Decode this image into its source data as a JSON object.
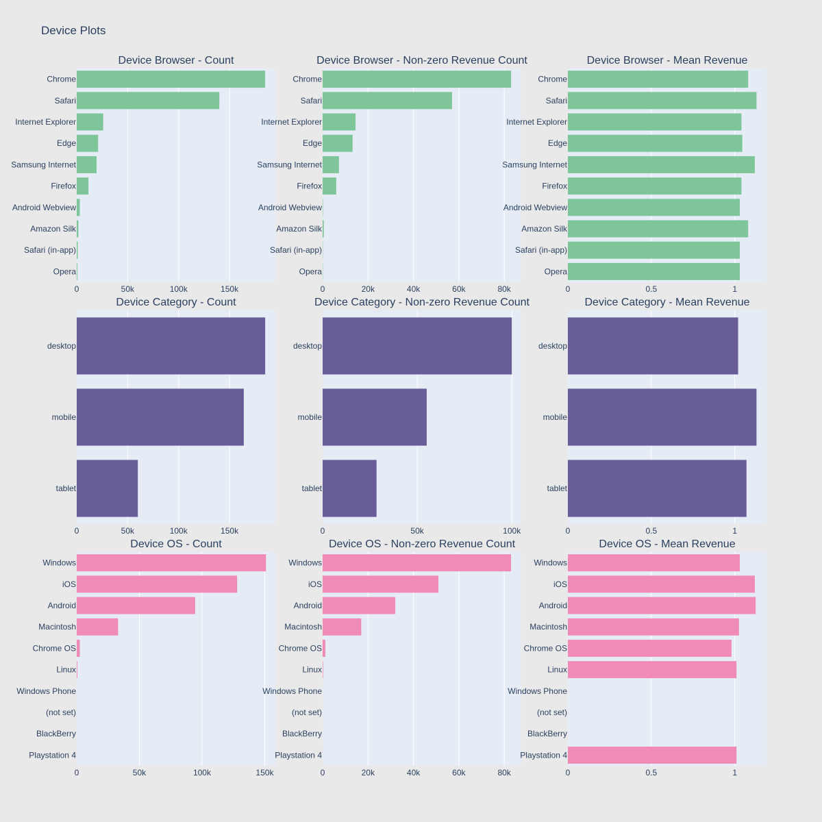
{
  "title": "Device Plots",
  "colors": {
    "browser": "#7ec699",
    "category": "#685d99",
    "os": "#ef8bb5",
    "plot_bg": "#e5ecf6",
    "paper_bg": "#e9e9e9",
    "grid": "#ffffff",
    "text": "#2a3f5f"
  },
  "chart_data": [
    {
      "type": "bar",
      "orientation": "horizontal",
      "title": "Device Browser - Count",
      "categories": [
        "Chrome",
        "Safari",
        "Internet Explorer",
        "Edge",
        "Samsung Internet",
        "Firefox",
        "Android Webview",
        "Amazon Silk",
        "Safari (in-app)",
        "Opera"
      ],
      "values": [
        185000,
        140000,
        26000,
        21000,
        19500,
        11500,
        3000,
        1600,
        1000,
        600
      ],
      "xlim": [
        0,
        195000
      ],
      "xticks": [
        0,
        50000,
        100000,
        150000
      ],
      "xtick_labels": [
        "0",
        "50k",
        "100k",
        "150k"
      ],
      "grid": true
    },
    {
      "type": "bar",
      "orientation": "horizontal",
      "title": "Device Browser - Non-zero Revenue Count",
      "categories": [
        "Chrome",
        "Safari",
        "Internet Explorer",
        "Edge",
        "Samsung Internet",
        "Firefox",
        "Android Webview",
        "Amazon Silk",
        "Safari (in-app)",
        "Opera"
      ],
      "values": [
        83000,
        57000,
        14500,
        13200,
        7200,
        6000,
        150,
        500,
        100,
        100
      ],
      "xlim": [
        0,
        87500
      ],
      "xticks": [
        0,
        20000,
        40000,
        60000,
        80000
      ],
      "xtick_labels": [
        "0",
        "20k",
        "40k",
        "60k",
        "80k"
      ],
      "grid": true
    },
    {
      "type": "bar",
      "orientation": "horizontal",
      "title": "Device Browser - Mean Revenue",
      "categories": [
        "Chrome",
        "Safari",
        "Internet Explorer",
        "Edge",
        "Samsung Internet",
        "Firefox",
        "Android Webview",
        "Amazon Silk",
        "Safari (in-app)",
        "Opera"
      ],
      "values": [
        1.08,
        1.13,
        1.04,
        1.045,
        1.12,
        1.04,
        1.03,
        1.08,
        1.03,
        1.03
      ],
      "xlim": [
        0,
        1.19
      ],
      "xticks": [
        0,
        0.5,
        1
      ],
      "xtick_labels": [
        "0",
        "0.5",
        "1"
      ],
      "grid": true
    },
    {
      "type": "bar",
      "orientation": "horizontal",
      "title": "Device Category - Count",
      "categories": [
        "desktop",
        "mobile",
        "tablet"
      ],
      "values": [
        185000,
        164000,
        60000
      ],
      "xlim": [
        0,
        195000
      ],
      "xticks": [
        0,
        50000,
        100000,
        150000
      ],
      "xtick_labels": [
        "0",
        "50k",
        "100k",
        "150k"
      ],
      "grid": true
    },
    {
      "type": "bar",
      "orientation": "horizontal",
      "title": "Device Category - Non-zero Revenue Count",
      "categories": [
        "desktop",
        "mobile",
        "tablet"
      ],
      "values": [
        100000,
        55000,
        28500
      ],
      "xlim": [
        0,
        105000
      ],
      "xticks": [
        0,
        50000,
        100000
      ],
      "xtick_labels": [
        "0",
        "50k",
        "100k"
      ],
      "grid": true
    },
    {
      "type": "bar",
      "orientation": "horizontal",
      "title": "Device Category - Mean Revenue",
      "categories": [
        "desktop",
        "mobile",
        "tablet"
      ],
      "values": [
        1.02,
        1.13,
        1.07
      ],
      "xlim": [
        0,
        1.19
      ],
      "xticks": [
        0,
        0.5,
        1
      ],
      "xtick_labels": [
        "0",
        "0.5",
        "1"
      ],
      "grid": true
    },
    {
      "type": "bar",
      "orientation": "horizontal",
      "title": "Device OS - Count",
      "categories": [
        "Windows",
        "iOS",
        "Android",
        "Macintosh",
        "Chrome OS",
        "Linux",
        "Windows Phone",
        "(not set)",
        "BlackBerry",
        "Playstation 4"
      ],
      "values": [
        151000,
        128000,
        94500,
        33000,
        2500,
        500,
        20,
        10,
        10,
        5
      ],
      "xlim": [
        0,
        158500
      ],
      "xticks": [
        0,
        50000,
        100000,
        150000
      ],
      "xtick_labels": [
        "0",
        "50k",
        "100k",
        "150k"
      ],
      "grid": true
    },
    {
      "type": "bar",
      "orientation": "horizontal",
      "title": "Device OS - Non-zero Revenue Count",
      "categories": [
        "Windows",
        "iOS",
        "Android",
        "Macintosh",
        "Chrome OS",
        "Linux",
        "Windows Phone",
        "(not set)",
        "BlackBerry",
        "Playstation 4"
      ],
      "values": [
        83000,
        51000,
        32000,
        17000,
        1200,
        200,
        0,
        0,
        0,
        5
      ],
      "xlim": [
        0,
        87500
      ],
      "xticks": [
        0,
        20000,
        40000,
        60000,
        80000
      ],
      "xtick_labels": [
        "0",
        "20k",
        "40k",
        "60k",
        "80k"
      ],
      "grid": true
    },
    {
      "type": "bar",
      "orientation": "horizontal",
      "title": "Device OS - Mean Revenue",
      "categories": [
        "Windows",
        "iOS",
        "Android",
        "Macintosh",
        "Chrome OS",
        "Linux",
        "Windows Phone",
        "(not set)",
        "BlackBerry",
        "Playstation 4"
      ],
      "values": [
        1.03,
        1.12,
        1.125,
        1.025,
        0.98,
        1.01,
        0,
        0,
        0,
        1.01
      ],
      "xlim": [
        0,
        1.19
      ],
      "xticks": [
        0,
        0.5,
        1
      ],
      "xtick_labels": [
        "0",
        "0.5",
        "1"
      ],
      "grid": true
    }
  ]
}
